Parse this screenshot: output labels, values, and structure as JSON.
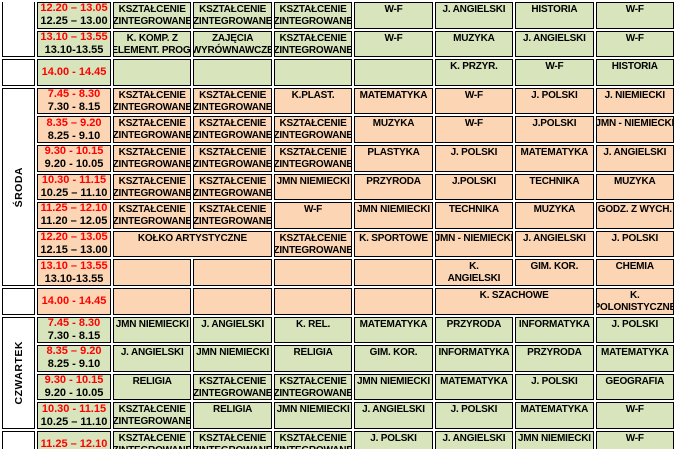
{
  "palette": {
    "row_green": "#d8e4bc",
    "row_orange": "#fcd5b4",
    "time_red": "#ff0000",
    "text_black": "#000000",
    "border_black": "#000000",
    "day_cell_white": "#ffffff"
  },
  "timetable": {
    "day_column": [
      {
        "label": "",
        "row_start": 1,
        "row_span": 2,
        "cut_top": true
      },
      {
        "label": "",
        "row_start": 3,
        "row_span": 1
      },
      {
        "label": "ŚRODA",
        "row_start": 4,
        "row_span": 7
      },
      {
        "label": "",
        "row_start": 11,
        "row_span": 1
      },
      {
        "label": "CZWARTEK",
        "row_start": 12,
        "row_span": 4
      },
      {
        "label": "",
        "row_start": 16,
        "row_span": 1,
        "cut_bottom": true
      }
    ],
    "rows": [
      {
        "bg": "green",
        "time": {
          "main": "12.20 – 13.05",
          "alt": "12.25 – 13.00"
        },
        "cells": [
          {
            "text": "KSZTAŁCENIE\nZINTEGROWANE"
          },
          {
            "text": "KSZTAŁCENIE\nZINTEGROWANE"
          },
          {
            "text": "KSZTAŁCENIE\nZINTEGROWANE"
          },
          {
            "text": "W-F"
          },
          {
            "text": "J. ANGIELSKI"
          },
          {
            "text": "HISTORIA"
          },
          {
            "text": "W-F"
          }
        ]
      },
      {
        "bg": "green",
        "time": {
          "main": "13.10 – 13.55",
          "alt": "13.10-13.55"
        },
        "cells": [
          {
            "text": "K. KOMP. Z\nELEMENT. PROG."
          },
          {
            "text": "ZAJĘCIA\nWYRÓWNAWCZE"
          },
          {
            "text": "KSZTAŁCENIE\nZINTEGROWANE"
          },
          {
            "text": "W-F"
          },
          {
            "text": "MUZYKA"
          },
          {
            "text": "J. ANGIELSKI"
          },
          {
            "text": "W-F"
          }
        ]
      },
      {
        "bg": "green",
        "time": {
          "main": "14.00 - 14.45",
          "alt": ""
        },
        "cells": [
          {
            "text": ""
          },
          {
            "text": ""
          },
          {
            "text": ""
          },
          {
            "text": ""
          },
          {
            "text": "K. PRZYR."
          },
          {
            "text": "W-F"
          },
          {
            "text": "HISTORIA"
          }
        ]
      },
      {
        "bg": "orange",
        "time": {
          "main": "7.45 - 8.30",
          "alt": "7.30 - 8.15"
        },
        "cells": [
          {
            "text": "KSZTAŁCENIE\nZINTEGROWANE"
          },
          {
            "text": "KSZTAŁCENIE\nZINTEGROWANE"
          },
          {
            "text": "K.PLAST."
          },
          {
            "text": "MATEMATYKA"
          },
          {
            "text": "W-F"
          },
          {
            "text": "J. POLSKI"
          },
          {
            "text": "J. NIEMIECKI"
          }
        ]
      },
      {
        "bg": "orange",
        "time": {
          "main": "8.35 – 9.20",
          "alt": "8.25 - 9.10"
        },
        "cells": [
          {
            "text": "KSZTAŁCENIE\nZINTEGROWANE"
          },
          {
            "text": "KSZTAŁCENIE\nZINTEGROWANE"
          },
          {
            "text": "KSZTAŁCENIE\nZINTEGROWANE"
          },
          {
            "text": "MUZYKA"
          },
          {
            "text": "W-F"
          },
          {
            "text": "J.POLSKI"
          },
          {
            "text": "JMN - NIEMIECKI"
          }
        ]
      },
      {
        "bg": "orange",
        "time": {
          "main": "9.30 - 10.15",
          "alt": "9.20 - 10.05"
        },
        "cells": [
          {
            "text": "KSZTAŁCENIE\nZINTEGROWANE"
          },
          {
            "text": "KSZTAŁCENIE\nZINTEGROWANE"
          },
          {
            "text": "KSZTAŁCENIE\nZINTEGROWANE"
          },
          {
            "text": "PLASTYKA"
          },
          {
            "text": "J. POLSKI"
          },
          {
            "text": "MATEMATYKA"
          },
          {
            "text": "J. ANGIELSKI"
          }
        ]
      },
      {
        "bg": "orange",
        "time": {
          "main": "10.30 - 11.15",
          "alt": "10.25 – 11.10"
        },
        "cells": [
          {
            "text": "KSZTAŁCENIE\nZINTEGROWANE"
          },
          {
            "text": "KSZTAŁCENIE\nZINTEGROWANE"
          },
          {
            "text": "JMN NIEMIECKI"
          },
          {
            "text": "PRZYRODA"
          },
          {
            "text": "J.POLSKI"
          },
          {
            "text": "TECHNIKA"
          },
          {
            "text": "MUZYKA"
          }
        ]
      },
      {
        "bg": "orange",
        "time": {
          "main": "11.25 – 12.10",
          "alt": "11.20 – 12.05"
        },
        "cells": [
          {
            "text": "KSZTAŁCENIE\nZINTEGROWANE"
          },
          {
            "text": "KSZTAŁCENIE\nZINTEGROWANE"
          },
          {
            "text": "W-F"
          },
          {
            "text": "JMN NIEMIECKI"
          },
          {
            "text": "TECHNIKA"
          },
          {
            "text": "MUZYKA"
          },
          {
            "text": "GODZ. Z WYCH."
          }
        ]
      },
      {
        "bg": "orange",
        "time": {
          "main": "12.20 – 13.05",
          "alt": "12.15 – 13.00"
        },
        "cells": [
          {
            "text": "KOŁKO ARTYSTYCZNE",
            "span": 2
          },
          {
            "text": "KSZTAŁCENIE\nZINTEGROWANE"
          },
          {
            "text": "K. SPORTOWE"
          },
          {
            "text": "JMN - NIEMIECKI"
          },
          {
            "text": "J. ANGIELSKI"
          },
          {
            "text": "J. POLSKI"
          }
        ]
      },
      {
        "bg": "orange",
        "time": {
          "main": "13.10 – 13.55",
          "alt": "13.10-13.55"
        },
        "cells": [
          {
            "text": ""
          },
          {
            "text": ""
          },
          {
            "text": ""
          },
          {
            "text": ""
          },
          {
            "text": "K.\nANGIELSKI"
          },
          {
            "text": "GIM. KOR."
          },
          {
            "text": "CHEMIA"
          }
        ]
      },
      {
        "bg": "orange",
        "time": {
          "main": "14.00 - 14.45",
          "alt": ""
        },
        "cells": [
          {
            "text": ""
          },
          {
            "text": ""
          },
          {
            "text": ""
          },
          {
            "text": ""
          },
          {
            "text": "K. SZACHOWE",
            "span": 2
          },
          {
            "text": "K.\nPOLONISTYCZNE"
          }
        ]
      },
      {
        "bg": "green",
        "time": {
          "main": "7.45 - 8.30",
          "alt": "7.30 - 8.15"
        },
        "cells": [
          {
            "text": "JMN NIEMIECKI"
          },
          {
            "text": "J. ANGIELSKI"
          },
          {
            "text": "K. REL."
          },
          {
            "text": "MATEMATYKA"
          },
          {
            "text": "PRZYRODA"
          },
          {
            "text": "INFORMATYKA"
          },
          {
            "text": "J. POLSKI"
          }
        ]
      },
      {
        "bg": "green",
        "time": {
          "main": "8.35 – 9.20",
          "alt": "8.25 - 9.10"
        },
        "cells": [
          {
            "text": "J. ANGIELSKI"
          },
          {
            "text": "JMN NIEMIECKI"
          },
          {
            "text": "RELIGIA"
          },
          {
            "text": "GIM. KOR."
          },
          {
            "text": "INFORMATYKA"
          },
          {
            "text": "PRZYRODA"
          },
          {
            "text": "MATEMATYKA"
          }
        ]
      },
      {
        "bg": "green",
        "time": {
          "main": "9.30 - 10.15",
          "alt": "9.20 - 10.05"
        },
        "cells": [
          {
            "text": "RELIGIA"
          },
          {
            "text": "KSZTAŁCENIE\nZINTEGROWANE"
          },
          {
            "text": "KSZTAŁCENIE\nZINTEGROWANE"
          },
          {
            "text": "JMN NIEMIECKI"
          },
          {
            "text": "MATEMATYKA"
          },
          {
            "text": "J. POLSKI"
          },
          {
            "text": "GEOGRAFIA"
          }
        ]
      },
      {
        "bg": "green",
        "time": {
          "main": "10.30 - 11.15",
          "alt": "10.25 – 11.10"
        },
        "cells": [
          {
            "text": "KSZTAŁCENIE\nZINTEGROWANE"
          },
          {
            "text": "RELIGIA"
          },
          {
            "text": "JMN NIEMIECKI"
          },
          {
            "text": "J. ANGIELSKI"
          },
          {
            "text": "J. POLSKI"
          },
          {
            "text": "MATEMATYKA"
          },
          {
            "text": "W-F"
          }
        ]
      },
      {
        "bg": "green",
        "time": {
          "main": "11.25 – 12.10",
          "alt": ""
        },
        "cells": [
          {
            "text": "KSZTAŁCENIE\nZINTEGROWANE"
          },
          {
            "text": "KSZTAŁCENIE\nZINTEGROWANE"
          },
          {
            "text": "KSZTAŁCENIE\nZINTEGROWANE"
          },
          {
            "text": "J. POLSKI"
          },
          {
            "text": "J. ANGIELSKI"
          },
          {
            "text": "JMN NIEMIECKI"
          },
          {
            "text": "W-F"
          }
        ]
      }
    ]
  }
}
